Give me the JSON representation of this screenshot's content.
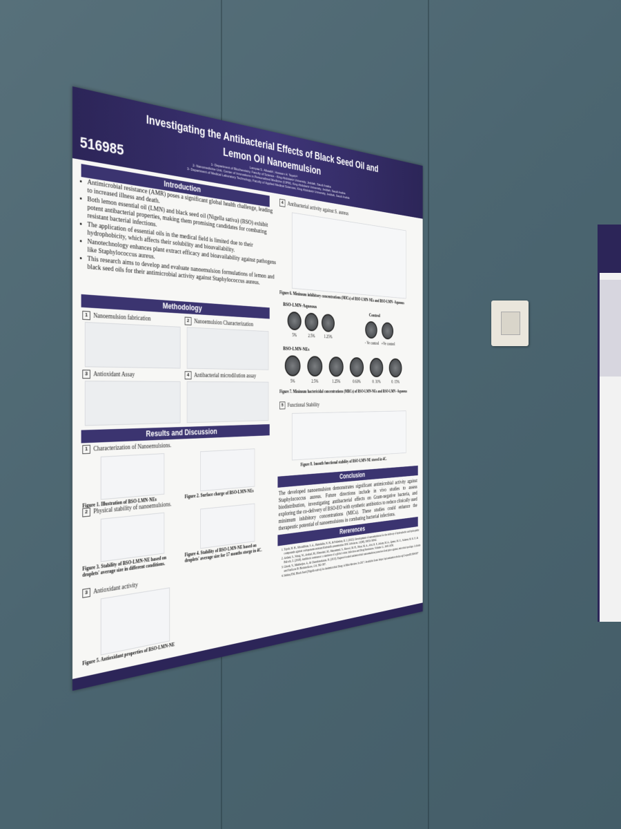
{
  "poster": {
    "header": {
      "number": "516985",
      "title": "Investigating the Antibacterial Effects of Black Seed Oil and Lemon Oil Nanoemulsion",
      "authors": "Lamyaa S. Alkaabi¹, Hossam H. Tayeb¹²",
      "affiliations": [
        "1- Department of Biochemistry, Faculty of Science - King Abdulaziz University, Jeddah, Saudi Arabia",
        "2- Nanomedicine Unit, Center of Innovations in Personalized Medicine (CIPM), King Abdulaziz University, Jeddah, Saudi Arabia",
        "3- Department of Medical Laboratory Technology, Faculty of Applied Medical Sciences, King Abdulaziz University, Jeddah, Saudi Arabia"
      ]
    },
    "introduction": {
      "heading": "Introduction",
      "bullets": [
        "Antimicrobial resistance (AMR) poses a significant global health challenge, leading to increased illness and death.",
        "Both lemon essential oil (LMN) and black seed oil (Nigella sativa) (BSO) exhibit potent antibacterial properties, making them promising candidates for combating resistant bacterial infections.",
        "The application of essential oils in the medical field is limited due to their hydrophobicity, which affects their solubility and bioavailability.",
        "Nanotechnology enhances plant extract efficacy and bioavailability against pathogens like Staphylococcus aureus.",
        "This research aims to develop and evaluate nanoemulsion formulations of lemon and black seed oils for their antimicrobial activity against Staphylococcus aureus."
      ]
    },
    "methodology": {
      "heading": "Methodology",
      "steps": [
        {
          "num": "1",
          "label": "Nanoemulsion fabrication"
        },
        {
          "num": "2",
          "label": "Nanoemulsion Characterization"
        },
        {
          "num": "3",
          "label": "Antioxidant Assay"
        },
        {
          "num": "4",
          "label": "Antibacterial microdilution assay"
        }
      ]
    },
    "results": {
      "heading": "Results and Discussion",
      "sections": [
        {
          "num": "1",
          "label": "Characterization of Nanoemulsions.",
          "figures": [
            "Figure 1. Illustration of BSO-LMN-NEs",
            "Figure 2. Surface charge of BSO-LMN-NEs"
          ]
        },
        {
          "num": "2",
          "label": "Physical stability of nanoemulsions.",
          "figures": [
            "Figure 3. Stability of BSO-LMN-NE based on droplets' average size in different conditions.",
            "Figure 4. Stability of BSO-LMN-NE based on droplets' average size for 17 months storge in 4C."
          ]
        },
        {
          "num": "3",
          "label": "Antioxidant activity",
          "figures": [
            "Figure 5. Antioxidant properties of BSO-LMN-NE"
          ]
        }
      ]
    },
    "antibacterial": {
      "num": "4",
      "label": "Antibacterial activity against S. aureus",
      "figure6": "Figure 6. Minimum inhibitory concentrations (MICs) of BSO-LMN-NEs and BSO-LMN -Aqueous",
      "aqueous_label": "BSO-LMN-Aqueous",
      "control_label": "Control",
      "aqueous_plates": [
        "5%",
        "2.5%",
        "1.25%"
      ],
      "control_plates": [
        "- Ve control",
        "+Ve control"
      ],
      "ne_label": "BSO-LMN-NEs",
      "ne_plates": [
        "5%",
        "2.5%",
        "1.25%",
        "0.63%",
        "0. 31%",
        "0. 15%"
      ],
      "figure7": "Figure 7. Minimum bactericidal concentrations (MBCs) of BSO-LMN-NEs and BSO-LMN -Aqueous"
    },
    "stability": {
      "num": "5",
      "label": "Functional Stability",
      "figure8": "Figure 8. 1month functional stability of BSO-LMN-NE stored in 4C."
    },
    "conclusion": {
      "heading": "Conclusion",
      "text": "The developed nanoemulsion demonstrates significant antimicrobial activity against Staphylococcus aureus. Future directions include in vivo studies to assess biodistribution, investigating antibacterial effects on Gram-negative bacteria, and exploring the co-delivery of BSO-EO with synthetic antibiotics to reduce clinically used minimum inhibitory concentrations (MICs). These studies could enhance the therapeutic potential of nanoemulsions in combating bacterial infections."
    },
    "references": {
      "heading": "Rererences",
      "items": [
        "Tayeb, H. H., Moradibian, S. A., Hamdulha, N. H., & Felimban, R. I. (2022). Development of nanoemulsions for the delivery of hydrophobic and hydrophilic compounds against carbapenem-resistant Klebsiella pneumoniae. RSC Advances, 12(48), 30032-30042.",
        "Ardani, S., Wang, W., Arshad, M., Elmoshel, M., Muzammal, S., Rasool, M. H., Nisar, M. A., Alvi, R. F., Aslam, M. A., Qamar, M. U., Salamat, M. K. F., & Baloch, Z. (2018). Antibiotic resistance: a rundown of a global crisis. Infection and Drug Resistance, Volume 11, 1645-1658.",
        "Ghosh, V., Mukherjee, A., & Chandrasekaran, N. (2013). Eugenol-loaded antimicrobial nanoemulsion preserves fruit juice against, microbial spoilage. Colloids and Surfaces B: Biointerfaces, 114, 392-397.",
        "Ishtiaq EM, Black Seed (Nigella sativa) As Antimicrobial Drug: A Mini-Review. In 2017. Available from: https://api.semanticscholar.org/CorpusID:3004307"
      ]
    }
  }
}
